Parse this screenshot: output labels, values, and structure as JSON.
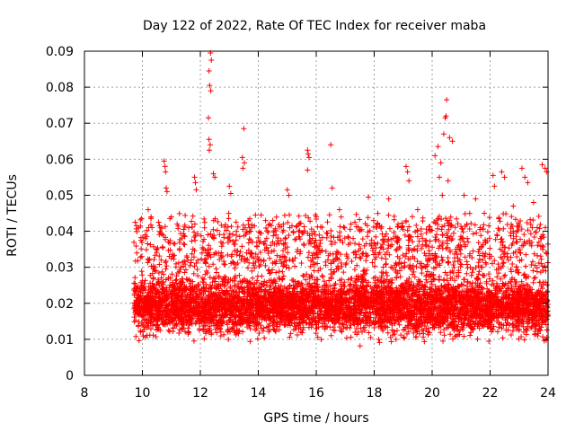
{
  "chart_data": {
    "type": "scatter",
    "title": "Day 122 of 2022, Rate Of TEC Index for receiver maba",
    "xlabel": "GPS time / hours",
    "ylabel": "ROTI / TECUs",
    "xlim": [
      8,
      24
    ],
    "ylim": [
      0,
      0.09
    ],
    "grid": true,
    "marker": "+",
    "color": "#ff0000",
    "x_ticks": [
      "8",
      "10",
      "12",
      "14",
      "16",
      "18",
      "20",
      "22",
      "24"
    ],
    "y_ticks": [
      "0",
      "0.01",
      "0.02",
      "0.03",
      "0.04",
      "0.05",
      "0.06",
      "0.07",
      "0.08",
      "0.09"
    ],
    "x_tick_values": [
      8,
      10,
      12,
      14,
      16,
      18,
      20,
      22,
      24
    ],
    "y_tick_values": [
      0,
      0.01,
      0.02,
      0.03,
      0.04,
      0.05,
      0.06,
      0.07,
      0.08,
      0.09
    ],
    "series": [
      {
        "name": "ROTI",
        "x_range": [
          9.7,
          24.0
        ],
        "typical_range": [
          0.006,
          0.045
        ],
        "points": [
          [
            12.35,
            0.0895
          ],
          [
            12.38,
            0.0875
          ],
          [
            12.3,
            0.0845
          ],
          [
            12.32,
            0.0805
          ],
          [
            12.36,
            0.079
          ],
          [
            12.28,
            0.0715
          ],
          [
            12.3,
            0.0655
          ],
          [
            12.34,
            0.064
          ],
          [
            12.31,
            0.0625
          ],
          [
            13.5,
            0.0685
          ],
          [
            13.45,
            0.0605
          ],
          [
            13.52,
            0.059
          ],
          [
            13.47,
            0.0575
          ],
          [
            10.75,
            0.0595
          ],
          [
            10.78,
            0.058
          ],
          [
            10.8,
            0.0565
          ],
          [
            10.82,
            0.052
          ],
          [
            10.85,
            0.051
          ],
          [
            11.8,
            0.055
          ],
          [
            11.83,
            0.0535
          ],
          [
            11.86,
            0.0515
          ],
          [
            12.45,
            0.056
          ],
          [
            12.5,
            0.055
          ],
          [
            13.0,
            0.0525
          ],
          [
            13.05,
            0.0505
          ],
          [
            15.7,
            0.0625
          ],
          [
            15.72,
            0.0615
          ],
          [
            15.75,
            0.0605
          ],
          [
            15.7,
            0.057
          ],
          [
            16.5,
            0.064
          ],
          [
            16.55,
            0.052
          ],
          [
            15.0,
            0.0515
          ],
          [
            15.05,
            0.05
          ],
          [
            17.8,
            0.0495
          ],
          [
            18.5,
            0.049
          ],
          [
            19.1,
            0.058
          ],
          [
            19.15,
            0.0565
          ],
          [
            19.2,
            0.054
          ],
          [
            20.5,
            0.0765
          ],
          [
            20.48,
            0.072
          ],
          [
            20.45,
            0.0715
          ],
          [
            20.4,
            0.067
          ],
          [
            20.2,
            0.0635
          ],
          [
            20.1,
            0.061
          ],
          [
            20.6,
            0.066
          ],
          [
            20.7,
            0.065
          ],
          [
            20.3,
            0.059
          ],
          [
            20.25,
            0.055
          ],
          [
            20.55,
            0.054
          ],
          [
            20.35,
            0.05
          ],
          [
            21.1,
            0.05
          ],
          [
            21.5,
            0.049
          ],
          [
            22.1,
            0.0555
          ],
          [
            22.15,
            0.0525
          ],
          [
            22.4,
            0.0565
          ],
          [
            22.5,
            0.055
          ],
          [
            23.1,
            0.0575
          ],
          [
            23.2,
            0.055
          ],
          [
            23.3,
            0.0535
          ],
          [
            23.8,
            0.0585
          ],
          [
            23.9,
            0.0575
          ],
          [
            23.95,
            0.0565
          ],
          [
            9.75,
            0.0425
          ],
          [
            9.8,
            0.0415
          ],
          [
            10.2,
            0.046
          ],
          [
            10.3,
            0.044
          ],
          [
            11.0,
            0.044
          ],
          [
            11.2,
            0.042
          ],
          [
            14.1,
            0.0445
          ],
          [
            14.5,
            0.043
          ],
          [
            16.0,
            0.044
          ],
          [
            16.8,
            0.046
          ],
          [
            17.2,
            0.042
          ],
          [
            19.5,
            0.046
          ],
          [
            21.8,
            0.045
          ],
          [
            22.8,
            0.047
          ],
          [
            23.5,
            0.048
          ]
        ]
      }
    ]
  }
}
